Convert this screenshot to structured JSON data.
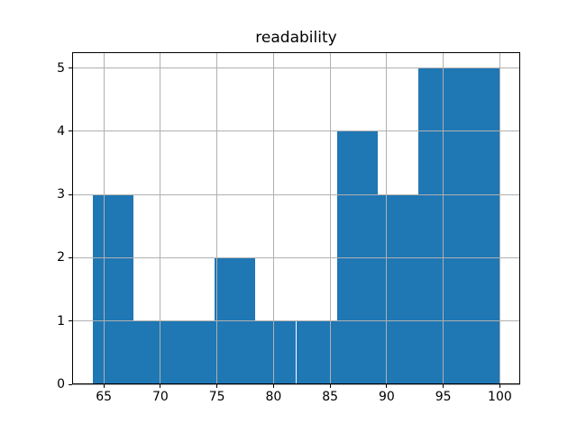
{
  "figure": {
    "background_color": "#ffffff"
  },
  "chart_data": {
    "type": "bar",
    "subtype": "histogram",
    "title": "readability",
    "xlabel": "",
    "ylabel": "",
    "bin_edges": [
      64.0,
      67.6,
      71.2,
      74.8,
      78.4,
      82.0,
      85.6,
      89.2,
      92.8,
      96.4,
      100.0
    ],
    "counts": [
      3,
      1,
      1,
      2,
      1,
      1,
      4,
      3,
      5,
      5
    ],
    "xticks": [
      65,
      70,
      75,
      80,
      85,
      90,
      95,
      100
    ],
    "yticks": [
      0,
      1,
      2,
      3,
      4,
      5
    ],
    "xlim": [
      62.2,
      101.8
    ],
    "ylim": [
      0,
      5.25
    ],
    "grid": true,
    "grid_above_bars": true,
    "legend": "none",
    "bar_color": "#1f77b4",
    "grid_color": "#b0b0b0",
    "spine_color": "#000000",
    "tick_color": "#000000",
    "text_color": "#000000"
  }
}
